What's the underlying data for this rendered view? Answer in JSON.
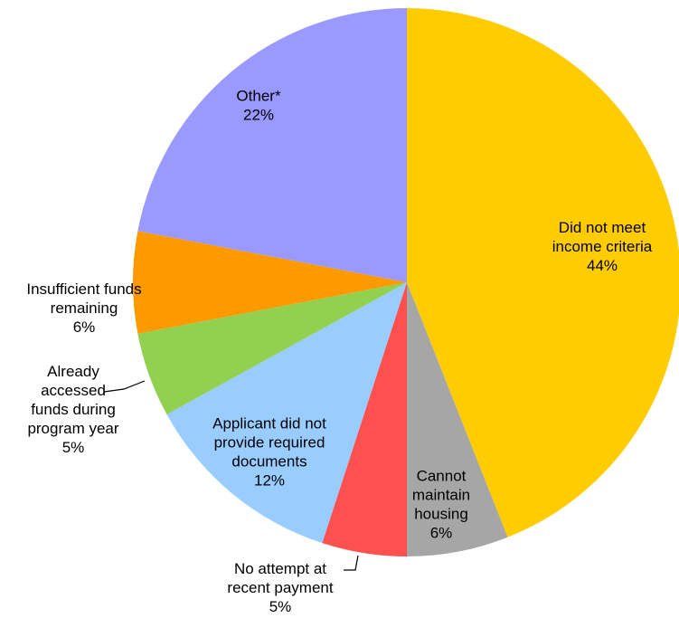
{
  "chart_data": {
    "type": "pie",
    "title": "",
    "slices": [
      {
        "label": [
          "Did not meet",
          "income criteria"
        ],
        "value_label": "44%",
        "value": 44,
        "color": "#FFCC00"
      },
      {
        "label": [
          "Cannot",
          "maintain",
          "housing"
        ],
        "value_label": "6%",
        "value": 6,
        "color": "#A6A6A6"
      },
      {
        "label": [
          "No attempt at",
          "recent payment"
        ],
        "value_label": "5%",
        "value": 5,
        "color": "#FF5050"
      },
      {
        "label": [
          "Applicant did not",
          "provide required",
          "documents"
        ],
        "value_label": "12%",
        "value": 12,
        "color": "#99CCFF"
      },
      {
        "label": [
          "Already",
          "accessed",
          "funds during",
          "program year"
        ],
        "value_label": "5%",
        "value": 5,
        "color": "#92D050"
      },
      {
        "label": [
          "Insufficient funds",
          "remaining"
        ],
        "value_label": "6%",
        "value": 6,
        "color": "#FF9900"
      },
      {
        "label": [
          "Other*"
        ],
        "value_label": "22%",
        "value": 22,
        "color": "#9999FF"
      }
    ]
  }
}
